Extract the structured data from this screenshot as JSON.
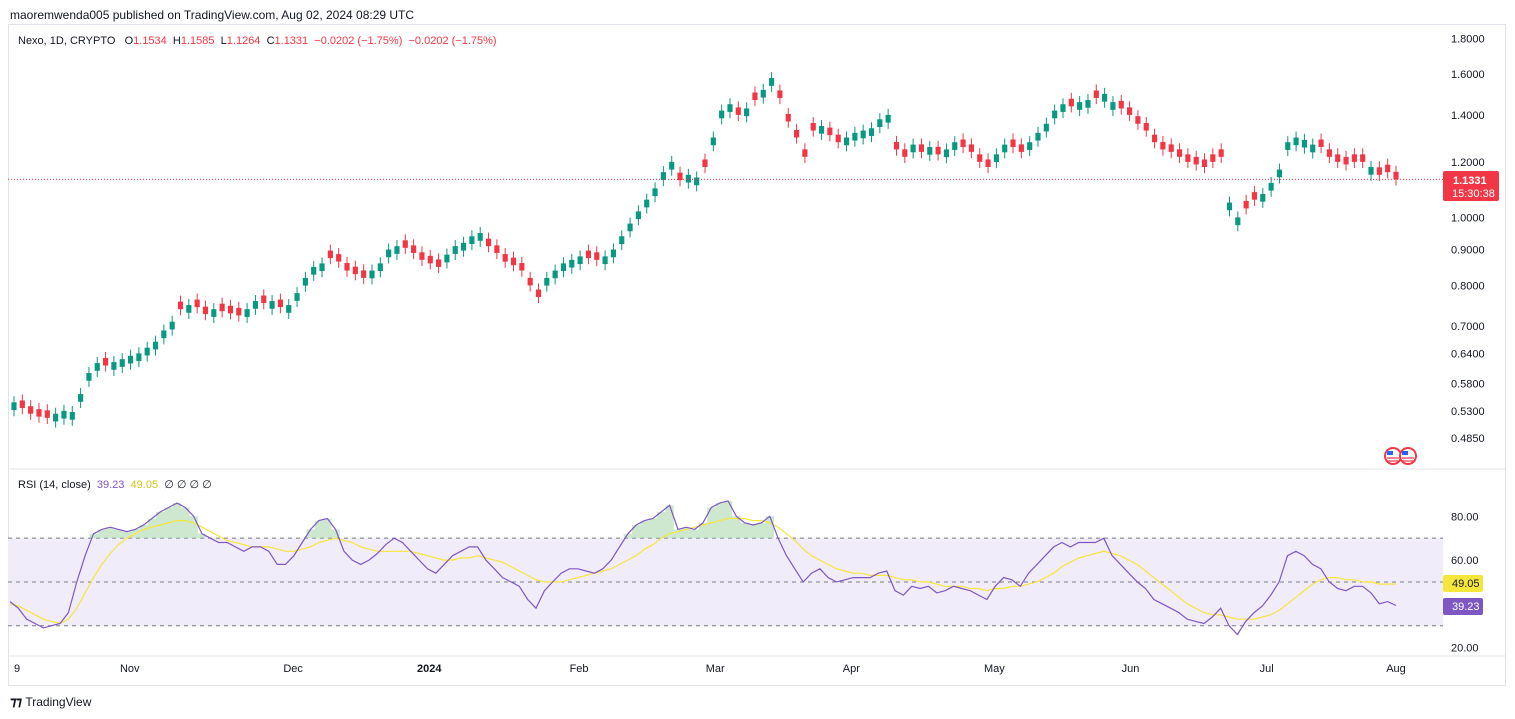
{
  "header": {
    "publisher": "maoremwenda005 published on TradingView.com, Aug 02, 2024 08:29 UTC"
  },
  "legend": {
    "symbol": "Nexo, 1D, CRYPTO",
    "open_label": "O",
    "open": "1.1534",
    "high_label": "H",
    "high": "1.1585",
    "low_label": "L",
    "low": "1.1264",
    "close_label": "C",
    "close": "1.1331",
    "change": "−0.0202 (−1.75%)",
    "change2": "−0.0202 (−1.75%)"
  },
  "price_badge": {
    "price": "1.1331",
    "countdown": "15:30:38"
  },
  "rsi_legend": {
    "title": "RSI (14, close)",
    "rsi": "39.23",
    "ma": "49.05",
    "extras": "∅ ∅ ∅ ∅"
  },
  "rsi_badges": {
    "ma": "49.05",
    "rsi": "39.23"
  },
  "footer": {
    "brand": "TradingView"
  },
  "colors": {
    "up": "#089981",
    "down": "#f23645",
    "rsi_line": "#7e57c2",
    "rsi_ma": "#f5e63c",
    "rsi_band": "#f0ecfa",
    "accent_badge": "#f23645"
  },
  "chart_data": [
    {
      "type": "candlestick",
      "title": "Nexo, 1D, CRYPTO",
      "y_scale": "log",
      "ylim": [
        0.46,
        1.85
      ],
      "y_ticks": [
        "1.8000",
        "1.6000",
        "1.4000",
        "1.2000",
        "1.0000",
        "0.9000",
        "0.8000",
        "0.7000",
        "0.6400",
        "0.5800",
        "0.5300",
        "0.4850"
      ],
      "x_ticks": [
        "9",
        "Nov",
        "Dec",
        "2024",
        "Feb",
        "Mar",
        "Apr",
        "May",
        "Jun",
        "Jul",
        "Aug"
      ],
      "last_price": 1.1331,
      "close_series": [
        0.545,
        0.535,
        0.525,
        0.52,
        0.518,
        0.525,
        0.53,
        0.528,
        0.56,
        0.6,
        0.62,
        0.615,
        0.622,
        0.628,
        0.635,
        0.64,
        0.652,
        0.665,
        0.69,
        0.71,
        0.74,
        0.75,
        0.745,
        0.728,
        0.74,
        0.735,
        0.73,
        0.725,
        0.74,
        0.76,
        0.755,
        0.76,
        0.745,
        0.75,
        0.78,
        0.82,
        0.85,
        0.86,
        0.875,
        0.865,
        0.84,
        0.83,
        0.82,
        0.84,
        0.86,
        0.9,
        0.91,
        0.905,
        0.89,
        0.87,
        0.86,
        0.85,
        0.885,
        0.91,
        0.92,
        0.94,
        0.95,
        0.91,
        0.89,
        0.865,
        0.855,
        0.84,
        0.8,
        0.77,
        0.82,
        0.84,
        0.86,
        0.87,
        0.88,
        0.875,
        0.87,
        0.88,
        0.9,
        0.94,
        0.98,
        1.02,
        1.06,
        1.1,
        1.16,
        1.2,
        1.13,
        1.15,
        1.14,
        1.18,
        1.3,
        1.42,
        1.45,
        1.4,
        1.43,
        1.47,
        1.52,
        1.58,
        1.48,
        1.37,
        1.3,
        1.22,
        1.33,
        1.35,
        1.31,
        1.28,
        1.3,
        1.32,
        1.33,
        1.34,
        1.38,
        1.4,
        1.25,
        1.22,
        1.27,
        1.24,
        1.26,
        1.23,
        1.25,
        1.28,
        1.26,
        1.24,
        1.2,
        1.18,
        1.23,
        1.27,
        1.26,
        1.24,
        1.28,
        1.32,
        1.36,
        1.42,
        1.45,
        1.44,
        1.46,
        1.47,
        1.48,
        1.5,
        1.46,
        1.43,
        1.4,
        1.36,
        1.33,
        1.28,
        1.25,
        1.24,
        1.22,
        1.2,
        1.19,
        1.18,
        1.2,
        1.22,
        1.05,
        1.0,
        1.03,
        1.06,
        1.08,
        1.12,
        1.17,
        1.28,
        1.3,
        1.29,
        1.27,
        1.26,
        1.22,
        1.2,
        1.19,
        1.2,
        1.2,
        1.18,
        1.15,
        1.16,
        1.1331
      ],
      "down_days": [
        1,
        2,
        3,
        4,
        11,
        20,
        22,
        23,
        25,
        26,
        27,
        30,
        32,
        38,
        39,
        40,
        41,
        42,
        47,
        48,
        49,
        50,
        51,
        57,
        58,
        59,
        60,
        61,
        62,
        63,
        69,
        70,
        80,
        83,
        87,
        89,
        92,
        93,
        94,
        95,
        96,
        98,
        99,
        106,
        107,
        109,
        111,
        114,
        115,
        116,
        117,
        120,
        121,
        127,
        130,
        133,
        134,
        135,
        136,
        137,
        138,
        139,
        140,
        141,
        142,
        143,
        144,
        145,
        148,
        149,
        157,
        158,
        159,
        160,
        161,
        162,
        164,
        165,
        166,
        167,
        168
      ]
    },
    {
      "type": "line",
      "title": "RSI (14, close)",
      "ylim": [
        18,
        92
      ],
      "y_ticks": [
        "80.00",
        "60.00",
        "20.00"
      ],
      "bands": [
        30,
        50,
        70
      ],
      "series": [
        {
          "name": "RSI",
          "values": [
            41,
            38,
            33,
            31,
            29,
            30,
            31,
            36,
            50,
            62,
            72,
            74,
            75,
            74,
            73,
            74,
            76,
            79,
            82,
            84,
            86,
            84,
            80,
            72,
            70,
            68,
            68,
            66,
            64,
            66,
            66,
            64,
            58,
            58,
            62,
            68,
            74,
            78,
            79,
            74,
            64,
            60,
            58,
            60,
            63,
            67,
            70,
            68,
            64,
            60,
            56,
            54,
            58,
            62,
            64,
            66,
            66,
            60,
            56,
            52,
            50,
            48,
            42,
            38,
            46,
            50,
            54,
            56,
            56,
            55,
            54,
            56,
            60,
            66,
            72,
            76,
            78,
            79,
            82,
            85,
            74,
            75,
            74,
            77,
            84,
            86,
            87,
            80,
            77,
            76,
            77,
            80,
            70,
            62,
            56,
            50,
            54,
            56,
            52,
            50,
            51,
            52,
            52,
            52,
            54,
            55,
            46,
            44,
            48,
            47,
            48,
            45,
            46,
            48,
            47,
            46,
            44,
            42,
            48,
            52,
            51,
            48,
            54,
            58,
            62,
            66,
            68,
            66,
            68,
            68,
            68,
            70,
            62,
            58,
            54,
            50,
            47,
            42,
            40,
            38,
            36,
            33,
            32,
            31,
            34,
            38,
            30,
            26,
            32,
            36,
            39,
            44,
            50,
            62,
            64,
            62,
            58,
            56,
            50,
            47,
            46,
            48,
            48,
            45,
            40,
            41,
            39.23
          ]
        },
        {
          "name": "RSI-based MA",
          "values": [
            40,
            39,
            37,
            35,
            33,
            32,
            31,
            33,
            38,
            45,
            52,
            58,
            63,
            67,
            70,
            72,
            74,
            75,
            76,
            77,
            78,
            78,
            77,
            75,
            73,
            71,
            69,
            68,
            67,
            66,
            66,
            66,
            65,
            64,
            64,
            65,
            66,
            68,
            69,
            70,
            69,
            68,
            66,
            65,
            64,
            64,
            64,
            64,
            64,
            63,
            62,
            61,
            60,
            60,
            61,
            61,
            62,
            61,
            60,
            59,
            57,
            55,
            53,
            51,
            50,
            50,
            50,
            51,
            52,
            53,
            54,
            55,
            56,
            58,
            60,
            62,
            65,
            67,
            70,
            72,
            73,
            74,
            75,
            76,
            77,
            78,
            79,
            79,
            79,
            78,
            78,
            77,
            75,
            72,
            69,
            65,
            62,
            60,
            58,
            56,
            55,
            54,
            54,
            53,
            53,
            53,
            52,
            51,
            51,
            50,
            50,
            49,
            48,
            48,
            48,
            47,
            47,
            46,
            47,
            47,
            48,
            48,
            49,
            50,
            52,
            54,
            57,
            59,
            61,
            62,
            63,
            64,
            63,
            62,
            60,
            58,
            55,
            52,
            49,
            46,
            43,
            40,
            38,
            36,
            35,
            35,
            34,
            33,
            33,
            33,
            34,
            35,
            37,
            40,
            43,
            46,
            49,
            51,
            52,
            52,
            51,
            51,
            50,
            50,
            49,
            49,
            49.05
          ]
        }
      ]
    }
  ]
}
